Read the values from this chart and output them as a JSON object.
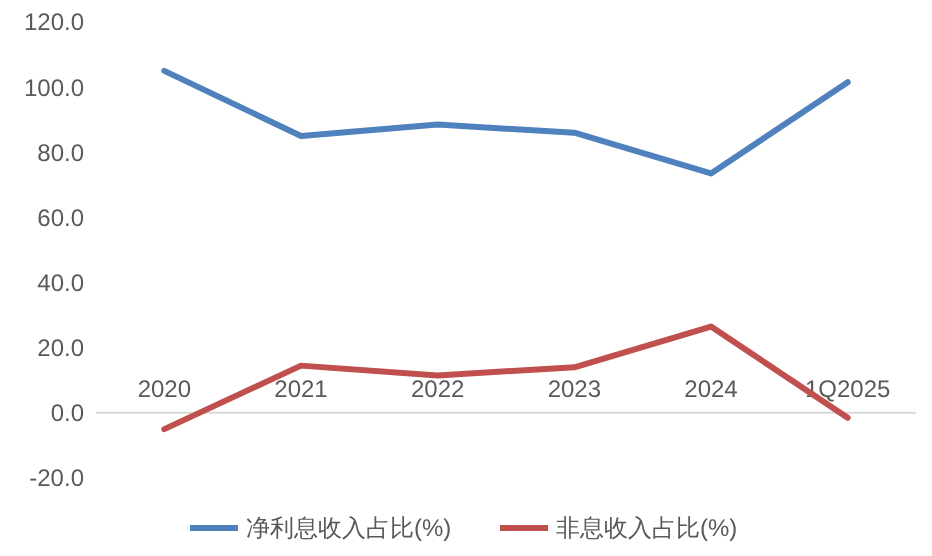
{
  "chart_data": {
    "type": "line",
    "categories": [
      "2020",
      "2021",
      "2022",
      "2023",
      "2024",
      "1Q2025"
    ],
    "series": [
      {
        "name": "净利息收入占比(%)",
        "color": "#4f81bd",
        "values": [
          105,
          85,
          88.5,
          86,
          73.5,
          101.5
        ]
      },
      {
        "name": "非息收入占比(%)",
        "color": "#c0504d",
        "values": [
          -5,
          14.5,
          11.5,
          14,
          26.5,
          -1.5
        ]
      }
    ],
    "ylim": [
      -20,
      120
    ],
    "yticks": [
      {
        "value": -20,
        "label": "-20.0"
      },
      {
        "value": 0,
        "label": "0.0"
      },
      {
        "value": 20,
        "label": "20.0"
      },
      {
        "value": 40,
        "label": "40.0"
      },
      {
        "value": 60,
        "label": "60.0"
      },
      {
        "value": 80,
        "label": "80.0"
      },
      {
        "value": 100,
        "label": "100.0"
      },
      {
        "value": 120,
        "label": "120.0"
      }
    ],
    "legend": "bottom",
    "marker": "none",
    "line_style": "solid"
  }
}
